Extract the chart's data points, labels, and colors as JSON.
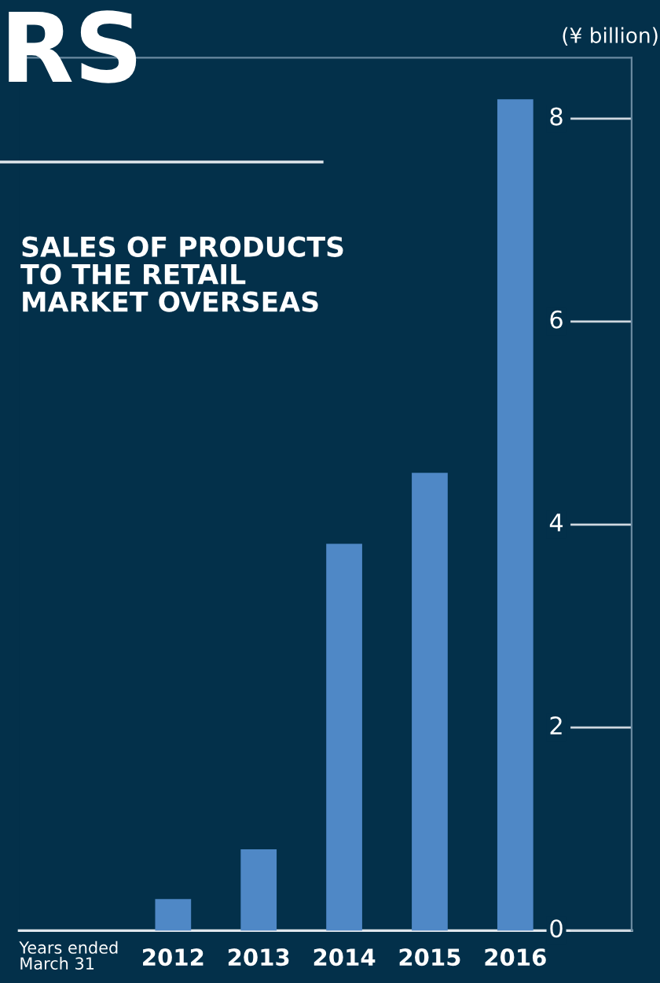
{
  "chart_data": {
    "type": "bar",
    "title": "SALES OF PRODUCTS\nTO THE RETAIL\nMARKET OVERSEAS",
    "ylabel": "(¥ billion)",
    "xlabel": "Years ended\nMarch 31",
    "annotations": [
      "RS"
    ],
    "categories": [
      "2012",
      "2013",
      "2014",
      "2015",
      "2016"
    ],
    "values": [
      0.31,
      0.8,
      3.81,
      4.51,
      8.19
    ],
    "color": "#4f88c6",
    "ylim": [
      0,
      8.6
    ],
    "yticks": [
      0,
      2,
      4,
      6,
      8
    ],
    "grid": false
  }
}
